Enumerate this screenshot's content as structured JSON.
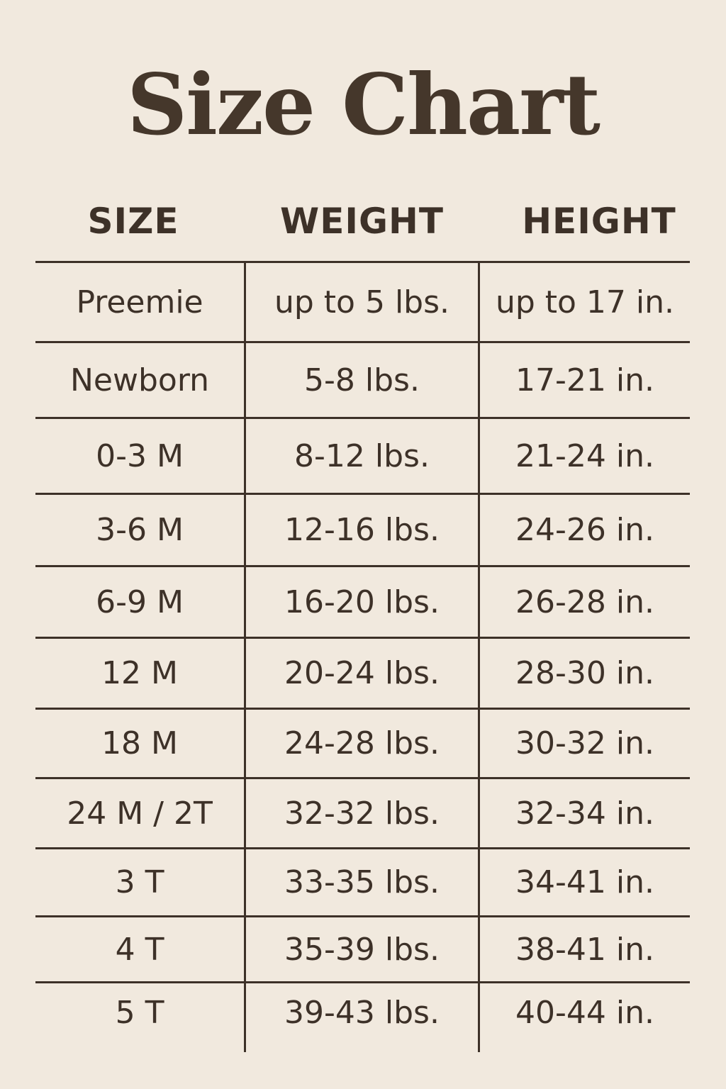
{
  "title": "Size Chart",
  "columns": [
    "SIZE",
    "WEIGHT",
    "HEIGHT"
  ],
  "rows": [
    {
      "size": "Preemie",
      "weight": "up to 5 lbs.",
      "height": "up to 17 in."
    },
    {
      "size": "Newborn",
      "weight": "5-8 lbs.",
      "height": "17-21 in."
    },
    {
      "size": "0-3 M",
      "weight": "8-12 lbs.",
      "height": "21-24 in."
    },
    {
      "size": "3-6 M",
      "weight": "12-16 lbs.",
      "height": "24-26 in."
    },
    {
      "size": "6-9 M",
      "weight": "16-20 lbs.",
      "height": "26-28 in."
    },
    {
      "size": "12 M",
      "weight": "20-24 lbs.",
      "height": "28-30 in."
    },
    {
      "size": "18 M",
      "weight": "24-28 lbs.",
      "height": "30-32 in."
    },
    {
      "size": "24 M / 2T",
      "weight": "32-32 lbs.",
      "height": "32-34 in."
    },
    {
      "size": "3 T",
      "weight": "33-35 lbs.",
      "height": "34-41 in."
    },
    {
      "size": "4 T",
      "weight": "35-39 lbs.",
      "height": "38-41 in."
    },
    {
      "size": "5 T",
      "weight": "39-43 lbs.",
      "height": "40-44 in."
    }
  ],
  "colors": {
    "background": "#f1e9de",
    "text": "#3d3128"
  }
}
